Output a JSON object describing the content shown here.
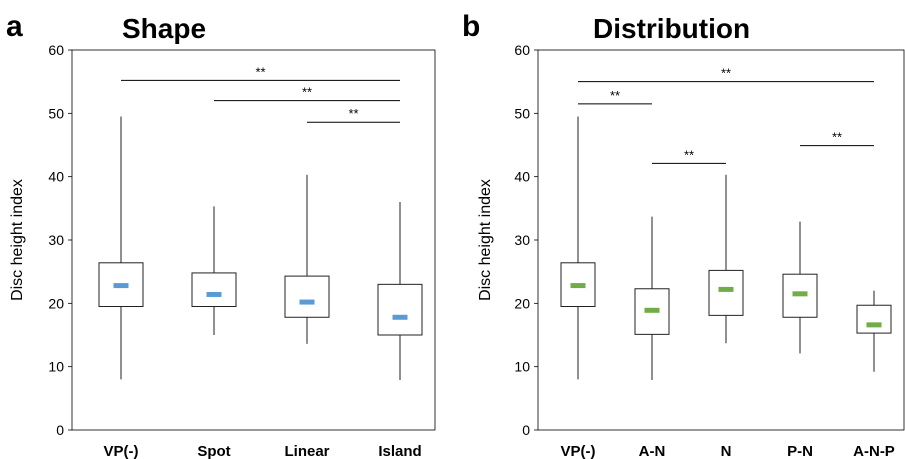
{
  "chart_data": [
    {
      "type": "box",
      "panel_letter": "a",
      "title": "Shape",
      "ylabel": "Disc height index",
      "ylim": [
        0,
        60
      ],
      "yticks": [
        "0",
        "10",
        "20",
        "30",
        "40",
        "50",
        "60"
      ],
      "ytick_values": [
        0,
        10,
        20,
        30,
        40,
        50,
        60
      ],
      "median_color": "#5b9bd5",
      "categories": [
        "VP(-)",
        "Spot",
        "Linear",
        "Island"
      ],
      "boxes": [
        {
          "min": 8.0,
          "q1": 19.5,
          "median": 22.8,
          "q3": 26.4,
          "max": 49.5
        },
        {
          "min": 15.0,
          "q1": 19.5,
          "median": 21.4,
          "q3": 24.8,
          "max": 35.3
        },
        {
          "min": 13.6,
          "q1": 17.8,
          "median": 20.2,
          "q3": 24.3,
          "max": 40.3
        },
        {
          "min": 7.9,
          "q1": 15.0,
          "median": 17.8,
          "q3": 23.0,
          "max": 36.0
        }
      ],
      "significance": [
        {
          "from": 0,
          "to": 3,
          "y": 55.2,
          "label": "**"
        },
        {
          "from": 1,
          "to": 3,
          "y": 52.0,
          "label": "**"
        },
        {
          "from": 2,
          "to": 3,
          "y": 48.6,
          "label": "**"
        }
      ]
    },
    {
      "type": "box",
      "panel_letter": "b",
      "title": "Distribution",
      "ylabel": "Disc height index",
      "ylim": [
        0,
        60
      ],
      "yticks": [
        "0",
        "10",
        "20",
        "30",
        "40",
        "50",
        "60"
      ],
      "ytick_values": [
        0,
        10,
        20,
        30,
        40,
        50,
        60
      ],
      "median_color": "#70ad47",
      "categories": [
        "VP(-)",
        "A-N",
        "N",
        "P-N",
        "A-N-P"
      ],
      "boxes": [
        {
          "min": 8.0,
          "q1": 19.5,
          "median": 22.8,
          "q3": 26.4,
          "max": 49.5
        },
        {
          "min": 7.9,
          "q1": 15.1,
          "median": 18.9,
          "q3": 22.3,
          "max": 33.7
        },
        {
          "min": 13.7,
          "q1": 18.1,
          "median": 22.2,
          "q3": 25.2,
          "max": 40.3
        },
        {
          "min": 12.1,
          "q1": 17.8,
          "median": 21.5,
          "q3": 24.6,
          "max": 32.9
        },
        {
          "min": 9.2,
          "q1": 15.3,
          "median": 16.6,
          "q3": 19.7,
          "max": 22.0
        }
      ],
      "significance": [
        {
          "from": 0,
          "to": 4,
          "y": 55.0,
          "label": "**"
        },
        {
          "from": 0,
          "to": 1,
          "y": 51.5,
          "label": "**"
        },
        {
          "from": 3,
          "to": 4,
          "y": 44.9,
          "label": "**"
        },
        {
          "from": 1,
          "to": 2,
          "y": 42.1,
          "label": "**"
        }
      ]
    }
  ]
}
